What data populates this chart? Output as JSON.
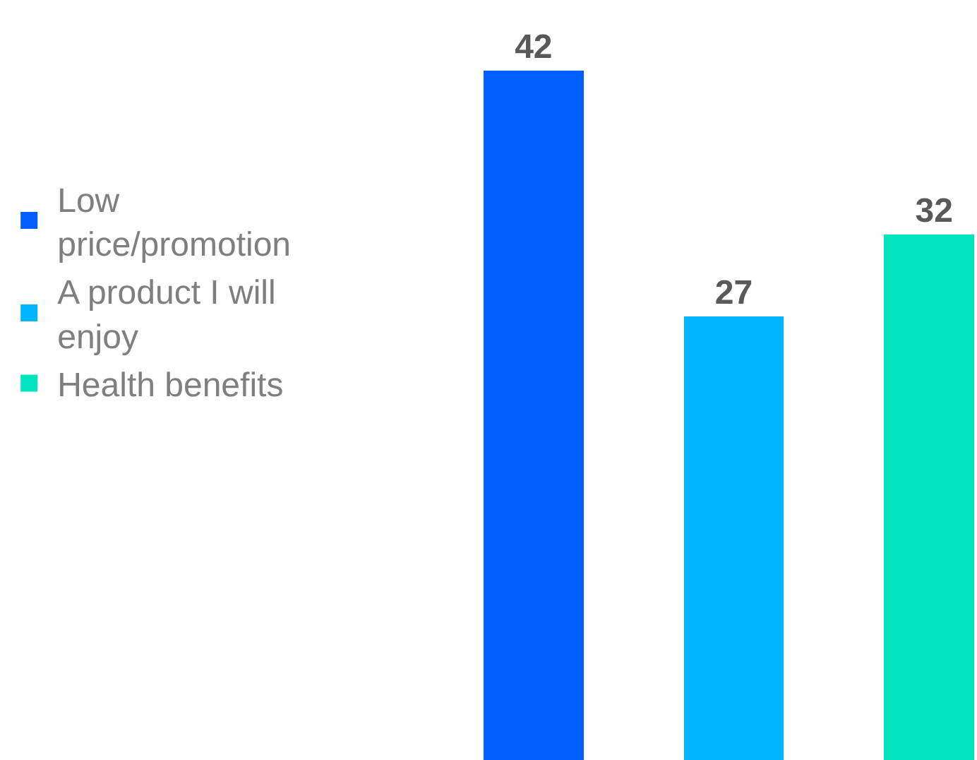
{
  "chart_data": {
    "type": "bar",
    "categories": [
      null,
      null,
      null
    ],
    "stacked": true,
    "series": [
      {
        "name": "Low price/promotion",
        "color": "#0060ff",
        "values": [
          42,
          null,
          null
        ]
      },
      {
        "name": "A product I will enjoy",
        "color": "#00b4ff",
        "values": [
          null,
          27,
          null
        ]
      },
      {
        "name": "Health benefits",
        "color": "#00e5bf",
        "values": [
          null,
          null,
          32
        ]
      }
    ],
    "data_labels": true,
    "legend": "left",
    "grid": false
  }
}
